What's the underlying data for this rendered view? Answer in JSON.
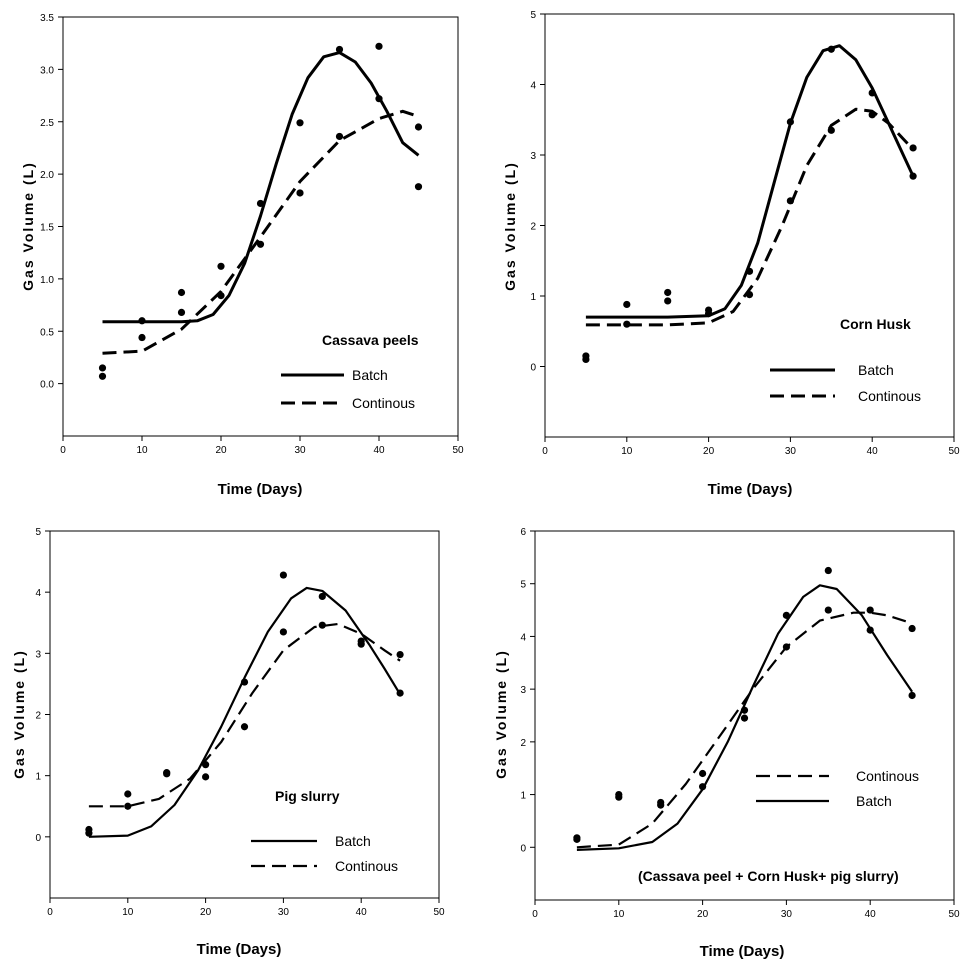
{
  "chart_data": [
    {
      "type": "scatter",
      "label": "Cassava peels",
      "xlabel": "Time (Days)",
      "ylabel": "Gas Volume (L)",
      "xlim": [
        0,
        50
      ],
      "ylim": [
        -0.5,
        3.5
      ],
      "xticks": [
        0,
        10,
        20,
        30,
        40,
        50
      ],
      "yticks": [
        0.0,
        0.5,
        1.0,
        1.5,
        2.0,
        2.5,
        3.0,
        3.5
      ],
      "ytick_labels": [
        "0.0",
        "0.5",
        "1.0",
        "1.5",
        "2.0",
        "2.5",
        "3.0",
        "3.5"
      ],
      "legend": {
        "position": "lower-right",
        "entries": [
          "Batch",
          "Continous"
        ]
      },
      "series": [
        {
          "name": "Batch",
          "style": "solid",
          "points_x": [
            5,
            10,
            15,
            20,
            25,
            30,
            35,
            40,
            45
          ],
          "points_y": [
            0.15,
            0.6,
            0.87,
            1.12,
            1.72,
            2.49,
            3.19,
            3.22,
            1.88
          ],
          "fit_x": [
            5,
            10,
            15,
            17,
            19,
            21,
            23,
            25,
            27,
            29,
            31,
            33,
            35,
            37,
            39,
            41,
            43,
            45
          ],
          "fit_y": [
            0.59,
            0.59,
            0.59,
            0.6,
            0.66,
            0.84,
            1.15,
            1.6,
            2.1,
            2.57,
            2.92,
            3.12,
            3.16,
            3.07,
            2.87,
            2.6,
            2.3,
            2.18
          ]
        },
        {
          "name": "Continous",
          "style": "dashed",
          "points_x": [
            5,
            10,
            15,
            20,
            25,
            30,
            35,
            40,
            45
          ],
          "points_y": [
            0.07,
            0.44,
            0.68,
            0.84,
            1.33,
            1.82,
            2.36,
            2.72,
            2.45
          ],
          "fit_x": [
            5,
            10,
            15,
            20,
            25,
            30,
            35,
            40,
            43,
            45
          ],
          "fit_y": [
            0.29,
            0.31,
            0.52,
            0.88,
            1.4,
            1.93,
            2.32,
            2.53,
            2.6,
            2.55
          ]
        }
      ]
    },
    {
      "type": "scatter",
      "label": "Corn Husk",
      "xlabel": "Time (Days)",
      "ylabel": "Gas Volume (L)",
      "xlim": [
        0,
        50
      ],
      "ylim": [
        -1,
        5
      ],
      "xticks": [
        0,
        10,
        20,
        30,
        40,
        50
      ],
      "yticks": [
        0,
        1,
        2,
        3,
        4,
        5
      ],
      "ytick_labels": [
        "0",
        "1",
        "2",
        "3",
        "4",
        "5"
      ],
      "legend": {
        "position": "lower-right",
        "entries": [
          "Batch",
          "Continous"
        ]
      },
      "series": [
        {
          "name": "Batch",
          "style": "solid",
          "points_x": [
            5,
            10,
            15,
            20,
            25,
            30,
            35,
            40,
            45
          ],
          "points_y": [
            0.15,
            0.88,
            1.05,
            0.8,
            1.35,
            3.47,
            4.5,
            3.88,
            2.7
          ],
          "fit_x": [
            5,
            15,
            20,
            22,
            24,
            26,
            28,
            30,
            32,
            34,
            36,
            38,
            40,
            42,
            44,
            45
          ],
          "fit_y": [
            0.7,
            0.7,
            0.72,
            0.82,
            1.15,
            1.75,
            2.6,
            3.45,
            4.1,
            4.48,
            4.55,
            4.35,
            3.95,
            3.45,
            2.95,
            2.7
          ]
        },
        {
          "name": "Continous",
          "style": "dashed",
          "points_x": [
            5,
            10,
            15,
            20,
            25,
            30,
            35,
            40,
            45
          ],
          "points_y": [
            0.1,
            0.6,
            0.93,
            0.75,
            1.02,
            2.35,
            3.35,
            3.57,
            3.1
          ],
          "fit_x": [
            5,
            15,
            20,
            23,
            26,
            29,
            32,
            35,
            38,
            40,
            42,
            45
          ],
          "fit_y": [
            0.59,
            0.59,
            0.62,
            0.78,
            1.25,
            2.0,
            2.85,
            3.42,
            3.65,
            3.62,
            3.45,
            3.08
          ]
        }
      ]
    },
    {
      "type": "scatter",
      "label": "Pig slurry",
      "xlabel": "Time (Days)",
      "ylabel": "Gas Volume (L)",
      "xlim": [
        0,
        50
      ],
      "ylim": [
        -1,
        5
      ],
      "xticks": [
        0,
        10,
        20,
        30,
        40,
        50
      ],
      "yticks": [
        0,
        1,
        2,
        3,
        4,
        5
      ],
      "ytick_labels": [
        "0",
        "1",
        "2",
        "3",
        "4",
        "5"
      ],
      "legend": {
        "position": "lower-right",
        "entries": [
          "Batch",
          "Continous"
        ]
      },
      "series": [
        {
          "name": "Batch",
          "style": "solid",
          "points_x": [
            5,
            10,
            15,
            20,
            25,
            30,
            35,
            40,
            45
          ],
          "points_y": [
            0.12,
            0.7,
            1.05,
            1.18,
            2.53,
            4.28,
            3.93,
            3.15,
            2.35
          ],
          "fit_x": [
            5,
            10,
            13,
            16,
            19,
            22,
            25,
            28,
            31,
            33,
            35,
            38,
            41,
            43,
            45
          ],
          "fit_y": [
            0.0,
            0.02,
            0.17,
            0.52,
            1.08,
            1.8,
            2.6,
            3.35,
            3.9,
            4.07,
            4.02,
            3.7,
            3.15,
            2.75,
            2.33
          ]
        },
        {
          "name": "Continous",
          "style": "dashed",
          "points_x": [
            5,
            10,
            15,
            20,
            25,
            30,
            35,
            40,
            45
          ],
          "points_y": [
            0.06,
            0.5,
            1.03,
            0.98,
            1.8,
            3.35,
            3.46,
            3.2,
            2.98
          ],
          "fit_x": [
            5,
            10,
            14,
            18,
            22,
            26,
            30,
            34,
            37,
            40,
            43,
            45
          ],
          "fit_y": [
            0.5,
            0.5,
            0.62,
            0.95,
            1.55,
            2.35,
            3.05,
            3.43,
            3.48,
            3.32,
            3.05,
            2.88
          ]
        }
      ]
    },
    {
      "type": "scatter",
      "label": "(Cassava peel + Corn Husk+ pig slurry)",
      "xlabel": "Time (Days)",
      "ylabel": "Gas Volume (L)",
      "xlim": [
        0,
        50
      ],
      "ylim": [
        -1,
        6
      ],
      "xticks": [
        0,
        10,
        20,
        30,
        40,
        50
      ],
      "yticks": [
        0,
        1,
        2,
        3,
        4,
        5,
        6
      ],
      "ytick_labels": [
        "0",
        "1",
        "2",
        "3",
        "4",
        "5",
        "6"
      ],
      "legend": {
        "position": "center-right",
        "entries": [
          "Continous",
          "Batch"
        ]
      },
      "series": [
        {
          "name": "Continous",
          "style": "dashed",
          "points_x": [
            5,
            10,
            15,
            20,
            25,
            30,
            35,
            40,
            45
          ],
          "points_y": [
            0.18,
            0.95,
            0.85,
            1.4,
            2.45,
            3.8,
            4.5,
            4.5,
            4.15
          ],
          "fit_x": [
            5,
            10,
            14,
            18,
            22,
            26,
            30,
            34,
            38,
            40,
            42,
            45
          ],
          "fit_y": [
            0.0,
            0.05,
            0.45,
            1.2,
            2.1,
            3.0,
            3.8,
            4.3,
            4.45,
            4.45,
            4.4,
            4.25
          ]
        },
        {
          "name": "Batch",
          "style": "solid",
          "points_x": [
            5,
            10,
            15,
            20,
            25,
            30,
            35,
            40,
            45
          ],
          "points_y": [
            0.15,
            1.0,
            0.8,
            1.15,
            2.6,
            4.4,
            5.25,
            4.12,
            2.88
          ],
          "fit_x": [
            5,
            10,
            14,
            17,
            20,
            23,
            26,
            29,
            32,
            34,
            36,
            39,
            42,
            45
          ],
          "fit_y": [
            -0.05,
            -0.02,
            0.1,
            0.45,
            1.1,
            2.0,
            3.05,
            4.05,
            4.75,
            4.97,
            4.9,
            4.4,
            3.65,
            2.95
          ]
        }
      ]
    }
  ]
}
